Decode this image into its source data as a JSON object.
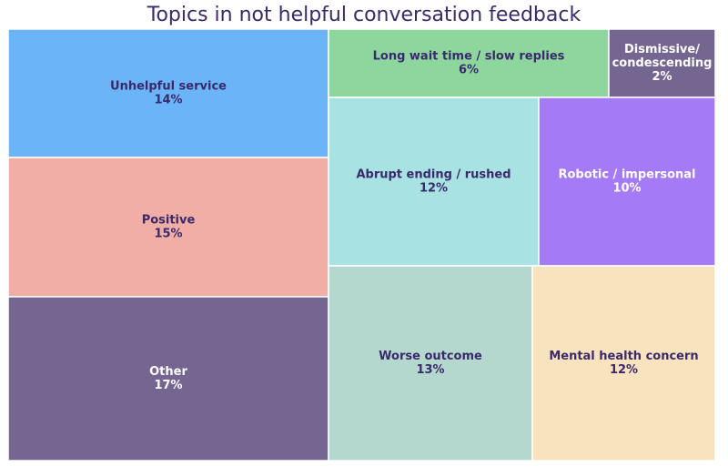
{
  "chart_data": {
    "type": "treemap",
    "title": "Topics in not helpful conversation feedback",
    "unit": "%",
    "items": [
      {
        "name": "Unhelpful service",
        "value": 14,
        "value_label": "14%",
        "color": "#6ab4f7",
        "text_color": "#3b2a6b"
      },
      {
        "name": "Positive",
        "value": 15,
        "value_label": "15%",
        "color": "#f0aea6",
        "text_color": "#3b2a6b"
      },
      {
        "name": "Other",
        "value": 17,
        "value_label": "17%",
        "color": "#746691",
        "text_color": "#ffffff"
      },
      {
        "name": "Long wait time / slow replies",
        "value": 6,
        "value_label": "6%",
        "color": "#8dd79f",
        "text_color": "#3b2a6b"
      },
      {
        "name": "Dismissive/ condescending",
        "label_lines": [
          "Dismissive/",
          "condescending"
        ],
        "value": 2,
        "value_label": "2%",
        "color": "#746691",
        "text_color": "#ffffff"
      },
      {
        "name": "Abrupt ending / rushed",
        "value": 12,
        "value_label": "12%",
        "color": "#a8e2e3",
        "text_color": "#3b2a6b"
      },
      {
        "name": "Robotic / impersonal",
        "value": 10,
        "value_label": "10%",
        "color": "#a47af6",
        "text_color": "#ffffff"
      },
      {
        "name": "Worse outcome",
        "value": 13,
        "value_label": "13%",
        "color": "#b5d8ce",
        "text_color": "#3b2a6b"
      },
      {
        "name": "Mental health concern",
        "value": 12,
        "value_label": "12%",
        "color": "#f8e3bf",
        "text_color": "#3b2a6b"
      }
    ]
  }
}
